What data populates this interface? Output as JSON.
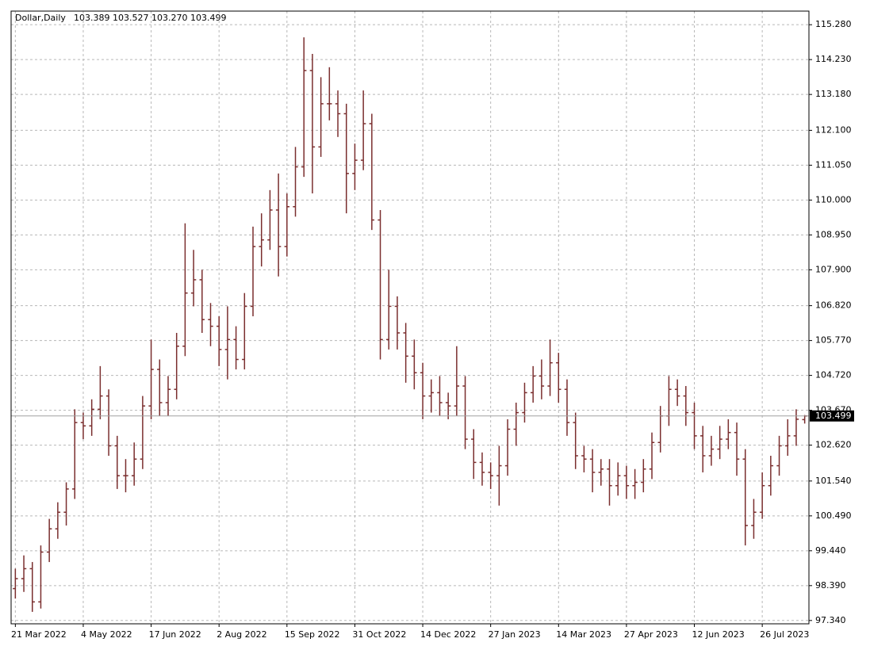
{
  "chart_data": {
    "type": "ohlc",
    "title": "Dollar,Daily",
    "info": "103.389 103.527 103.270 103.499",
    "color": "#7a2e2e",
    "grid": true,
    "open": [
      98.3,
      98.6,
      98.9,
      97.9,
      99.4,
      100.1,
      100.6,
      101.3,
      103.3,
      103.2,
      103.7,
      104.1,
      102.6,
      101.7,
      101.7,
      102.2,
      103.8,
      104.9,
      103.9,
      104.3,
      105.6,
      107.2,
      107.6,
      106.4,
      106.2,
      105.5,
      105.8,
      105.2,
      106.8,
      108.6,
      108.8,
      109.7,
      108.6,
      109.8,
      111.0,
      113.9,
      111.6,
      112.9,
      112.9,
      112.6,
      110.8,
      111.2,
      112.3,
      109.4,
      105.8,
      106.8,
      106.0,
      105.3,
      104.8,
      104.1,
      104.2,
      103.9,
      103.8,
      104.4,
      102.8,
      102.1,
      101.8,
      101.7,
      102.0,
      103.1,
      103.6,
      104.2,
      104.7,
      104.4,
      105.1,
      104.3,
      103.3,
      102.3,
      102.2,
      101.8,
      101.9,
      101.4,
      101.7,
      101.4,
      101.5,
      101.9,
      102.7,
      103.5,
      104.3,
      104.1,
      103.6,
      102.9,
      102.3,
      102.5,
      102.8,
      103.0,
      102.2,
      100.2,
      100.6,
      101.4,
      102.0,
      102.6,
      102.9,
      103.389
    ],
    "high": [
      98.9,
      99.3,
      99.1,
      99.6,
      100.4,
      100.9,
      101.5,
      103.7,
      103.6,
      104.0,
      105.0,
      104.3,
      102.9,
      102.2,
      102.7,
      104.1,
      105.8,
      105.2,
      104.7,
      106.0,
      109.3,
      108.5,
      107.9,
      106.9,
      106.5,
      106.8,
      106.2,
      107.2,
      109.2,
      109.6,
      110.3,
      110.8,
      110.2,
      111.6,
      114.9,
      114.4,
      113.7,
      114.0,
      113.3,
      112.9,
      111.7,
      113.3,
      112.6,
      109.7,
      107.9,
      107.1,
      106.3,
      105.8,
      105.1,
      104.6,
      104.7,
      104.2,
      105.6,
      104.7,
      103.1,
      102.4,
      102.1,
      102.6,
      103.4,
      103.9,
      104.5,
      105.0,
      105.2,
      105.8,
      105.4,
      104.6,
      103.6,
      102.6,
      102.5,
      102.2,
      102.2,
      102.1,
      102.0,
      101.9,
      102.2,
      103.0,
      103.8,
      104.7,
      104.6,
      104.4,
      103.9,
      103.2,
      102.9,
      103.2,
      103.4,
      103.3,
      102.5,
      101.0,
      101.8,
      102.3,
      102.9,
      103.4,
      103.7,
      103.527
    ],
    "low": [
      98.0,
      98.2,
      97.6,
      97.7,
      99.1,
      99.8,
      100.2,
      101.0,
      102.8,
      102.9,
      103.4,
      102.3,
      101.3,
      101.2,
      101.4,
      101.9,
      103.4,
      103.5,
      103.5,
      104.0,
      105.3,
      106.8,
      106.0,
      105.6,
      105.0,
      104.6,
      104.9,
      104.9,
      106.5,
      108.0,
      108.5,
      107.7,
      108.3,
      109.5,
      110.7,
      110.2,
      111.3,
      112.4,
      111.9,
      109.6,
      110.3,
      110.9,
      109.1,
      105.2,
      105.5,
      105.5,
      104.5,
      104.3,
      103.4,
      103.6,
      103.5,
      103.4,
      103.5,
      102.5,
      101.6,
      101.4,
      101.3,
      100.8,
      101.7,
      102.6,
      103.3,
      103.9,
      104.0,
      104.1,
      103.9,
      102.9,
      101.9,
      101.8,
      101.2,
      101.4,
      100.8,
      101.1,
      101.0,
      101.0,
      101.2,
      101.6,
      102.4,
      103.2,
      103.8,
      103.2,
      102.5,
      101.8,
      102.0,
      102.2,
      102.5,
      101.7,
      99.6,
      99.8,
      100.4,
      101.1,
      101.7,
      102.3,
      102.6,
      103.27
    ],
    "close": [
      98.6,
      98.9,
      97.9,
      99.4,
      100.1,
      100.6,
      101.3,
      103.3,
      103.2,
      103.7,
      104.1,
      102.6,
      101.7,
      101.7,
      102.2,
      103.8,
      104.9,
      103.9,
      104.3,
      105.6,
      107.2,
      107.6,
      106.4,
      106.2,
      105.5,
      105.8,
      105.2,
      106.8,
      108.6,
      108.8,
      109.7,
      108.6,
      109.8,
      111.0,
      113.9,
      111.6,
      112.9,
      112.9,
      112.6,
      110.8,
      111.2,
      112.3,
      109.4,
      105.8,
      106.8,
      106.0,
      105.3,
      104.8,
      104.1,
      104.2,
      103.9,
      103.8,
      104.4,
      102.8,
      102.1,
      101.8,
      101.7,
      102.0,
      103.1,
      103.6,
      104.2,
      104.7,
      104.4,
      105.1,
      104.3,
      103.3,
      102.3,
      102.2,
      101.8,
      101.9,
      101.4,
      101.7,
      101.4,
      101.5,
      101.9,
      102.7,
      103.5,
      104.3,
      104.1,
      103.6,
      102.9,
      102.3,
      102.5,
      102.8,
      103.0,
      102.2,
      100.2,
      100.6,
      101.4,
      102.0,
      102.6,
      102.9,
      103.4,
      103.499
    ],
    "last_price": {
      "value": 103.499,
      "label": "103.499"
    },
    "xlim": [
      -0.5,
      93.5
    ],
    "xticks": [
      {
        "value": 0,
        "label": "21 Mar 2022"
      },
      {
        "value": 8,
        "label": "4 May 2022"
      },
      {
        "value": 16,
        "label": "17 Jun 2022"
      },
      {
        "value": 24,
        "label": "2 Aug 2022"
      },
      {
        "value": 32,
        "label": "15 Sep 2022"
      },
      {
        "value": 40,
        "label": "31 Oct 2022"
      },
      {
        "value": 48,
        "label": "14 Dec 2022"
      },
      {
        "value": 56,
        "label": "27 Jan 2023"
      },
      {
        "value": 64,
        "label": "14 Mar 2023"
      },
      {
        "value": 72,
        "label": "27 Apr 2023"
      },
      {
        "value": 80,
        "label": "12 Jun 2023"
      },
      {
        "value": 88,
        "label": "26 Jul 2023"
      }
    ],
    "ylim": [
      97.24,
      115.69
    ],
    "yticks": [
      {
        "value": 97.34,
        "label": "97.340"
      },
      {
        "value": 98.39,
        "label": "98.390"
      },
      {
        "value": 99.44,
        "label": "99.440"
      },
      {
        "value": 100.49,
        "label": "100.490"
      },
      {
        "value": 101.54,
        "label": "101.540"
      },
      {
        "value": 102.62,
        "label": "102.620"
      },
      {
        "value": 103.67,
        "label": "103.670"
      },
      {
        "value": 104.72,
        "label": "104.720"
      },
      {
        "value": 105.77,
        "label": "105.770"
      },
      {
        "value": 106.82,
        "label": "106.820"
      },
      {
        "value": 107.9,
        "label": "107.900"
      },
      {
        "value": 108.95,
        "label": "108.950"
      },
      {
        "value": 110,
        "label": "110.000"
      },
      {
        "value": 111.05,
        "label": "111.050"
      },
      {
        "value": 112.1,
        "label": "112.100"
      },
      {
        "value": 113.18,
        "label": "113.180"
      },
      {
        "value": 114.23,
        "label": "114.230"
      },
      {
        "value": 115.28,
        "label": "115.280"
      }
    ]
  }
}
